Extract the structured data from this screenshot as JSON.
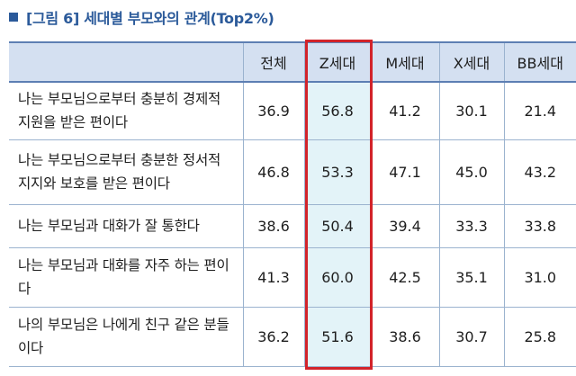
{
  "title": "[그림 6] 세대별 부모와의 관계(Top2%)",
  "table": {
    "headers": [
      "",
      "전체",
      "Z세대",
      "M세대",
      "X세대",
      "BB세대"
    ],
    "rows": [
      {
        "label": "나는 부모님으로부터 충분히 경제적 지원을 받은 편이다",
        "values": [
          "36.9",
          "56.8",
          "41.2",
          "30.1",
          "21.4"
        ]
      },
      {
        "label": "나는 부모님으로부터 충분한 정서적 지지와 보호를 받은 편이다",
        "values": [
          "46.8",
          "53.3",
          "47.1",
          "45.0",
          "43.2"
        ]
      },
      {
        "label": "나는 부모님과 대화가 잘 통한다",
        "values": [
          "38.6",
          "50.4",
          "39.4",
          "33.3",
          "33.8"
        ]
      },
      {
        "label": "나는 부모님과 대화를 자주 하는 편이다",
        "values": [
          "41.3",
          "60.0",
          "42.5",
          "35.1",
          "31.0"
        ]
      },
      {
        "label": "나의 부모님은 나에게 친구 같은 분들이다",
        "values": [
          "36.2",
          "51.6",
          "38.6",
          "30.7",
          "25.8"
        ]
      }
    ]
  },
  "colors": {
    "title": "#2b5a9a",
    "header_bg": "#d4e0f1",
    "highlight_border": "#d2232a",
    "highlight_fill": "#e3f3f8"
  }
}
